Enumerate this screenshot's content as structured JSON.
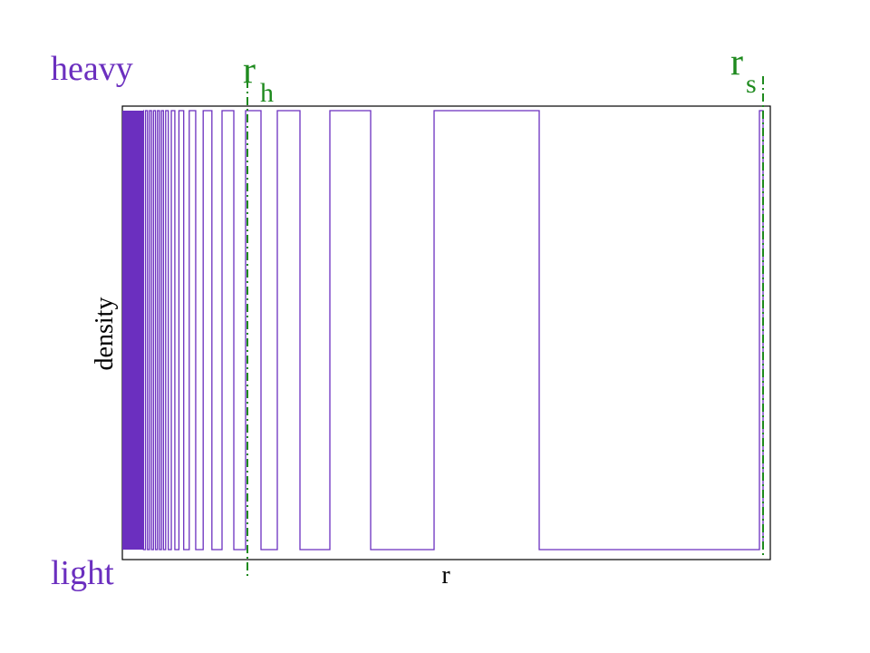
{
  "labels": {
    "heavy": "heavy",
    "light": "light",
    "y_axis": "density",
    "x_axis": "r",
    "r_h": {
      "main": "r",
      "sub": "h"
    },
    "r_s": {
      "main": "r",
      "sub": "s"
    }
  }
}
